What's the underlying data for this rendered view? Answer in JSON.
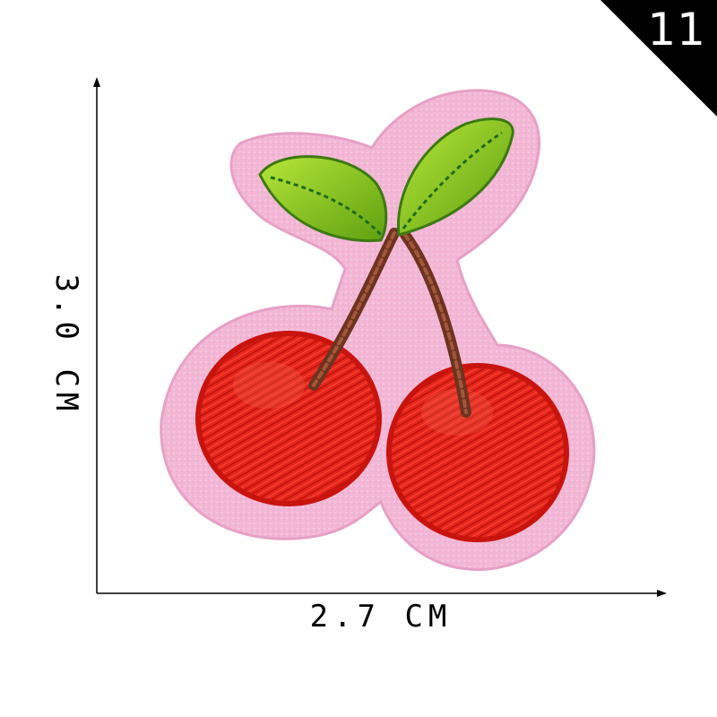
{
  "badge": {
    "number": "11",
    "color": "#000000"
  },
  "dimensions": {
    "width_label": "2.7 CM",
    "height_label": "3.0 CM"
  },
  "patch": {
    "felt_color": "#f3b7d6",
    "cherry_color": "#e8251c",
    "leaf_color": "#8fd11c",
    "stem_color": "#6e3320"
  }
}
